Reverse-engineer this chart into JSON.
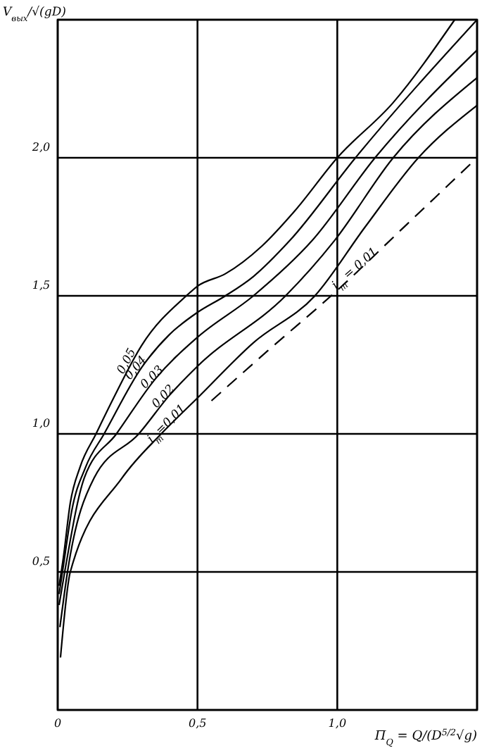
{
  "chart_data": {
    "type": "line",
    "xlabel": "П$_{Q}$ = Q/(D$^{5/2}$√g)",
    "ylabel": "V$_{вых}$/√(gD)",
    "xlim": [
      0,
      1.5
    ],
    "ylim": [
      0,
      2.5
    ],
    "xticks": [
      0,
      {
        "value": 0.5,
        "label": "0,5"
      },
      {
        "value": 1,
        "label": "1,0"
      },
      {
        "value": 1.5,
        "label": null
      }
    ],
    "yticks": [
      {
        "value": 0,
        "label": null
      },
      {
        "value": 0.5,
        "label": "0,5"
      },
      {
        "value": 1,
        "label": "1,0"
      },
      {
        "value": 1.5,
        "label": "1,5"
      },
      {
        "value": 2,
        "label": "2,0"
      },
      {
        "value": 2.5,
        "label": null
      }
    ],
    "grid": true,
    "marker": "none",
    "series": [
      {
        "name": "0,05",
        "color": "#000000",
        "line_style": "solid",
        "x": [
          0.005,
          0.02,
          0.045,
          0.08,
          0.137,
          0.2,
          0.3,
          0.46,
          0.5,
          0.6,
          0.73,
          0.85,
          1.0,
          1.2,
          1.42
        ],
        "values": [
          0.45,
          0.55,
          0.75,
          0.88,
          1.0,
          1.13,
          1.32,
          1.5,
          1.535,
          1.58,
          1.68,
          1.81,
          2.0,
          2.2,
          2.5
        ]
      },
      {
        "name": "0,04",
        "color": "#000000",
        "line_style": "solid",
        "x": [
          0.005,
          0.02,
          0.05,
          0.1,
          0.166,
          0.3,
          0.4,
          0.5,
          0.6,
          0.7,
          0.83,
          1.065,
          1.5
        ],
        "values": [
          0.42,
          0.52,
          0.72,
          0.88,
          1.0,
          1.24,
          1.36,
          1.44,
          1.5,
          1.57,
          1.7,
          2.0,
          2.5
        ]
      },
      {
        "name": "0,03",
        "color": "#000000",
        "line_style": "solid",
        "x": [
          0.005,
          0.025,
          0.095,
          0.21,
          0.35,
          0.5,
          0.7,
          0.91,
          1.135,
          1.5
        ],
        "values": [
          0.38,
          0.5,
          0.84,
          1.0,
          1.2,
          1.35,
          1.5,
          1.7,
          2.0,
          2.39
        ]
      },
      {
        "name": "0,02",
        "color": "#000000",
        "line_style": "solid",
        "x": [
          0.008,
          0.035,
          0.13,
          0.29,
          0.4,
          0.5,
          0.815,
          0.99,
          1.2,
          1.5
        ],
        "values": [
          0.3,
          0.5,
          0.84,
          1.0,
          1.14,
          1.245,
          1.5,
          1.7,
          2.0,
          2.29
        ]
      },
      {
        "name": "i$_{т}$=0,01",
        "color": "#000000",
        "line_style": "solid",
        "x": [
          0.01,
          0.045,
          0.23,
          0.37,
          0.5,
          0.7,
          0.92,
          1.1,
          1.29,
          1.5
        ],
        "values": [
          0.19,
          0.5,
          0.84,
          1.0,
          1.13,
          1.33,
          1.5,
          1.75,
          2.0,
          2.19
        ]
      },
      {
        "name": "i$_{т}$ = 0,01",
        "color": "#000000",
        "line_style": "dashed",
        "x": [
          0.55,
          0.75,
          1.0,
          1.25,
          1.5
        ],
        "values": [
          1.12,
          1.3,
          1.52,
          1.76,
          2.0
        ]
      }
    ]
  }
}
